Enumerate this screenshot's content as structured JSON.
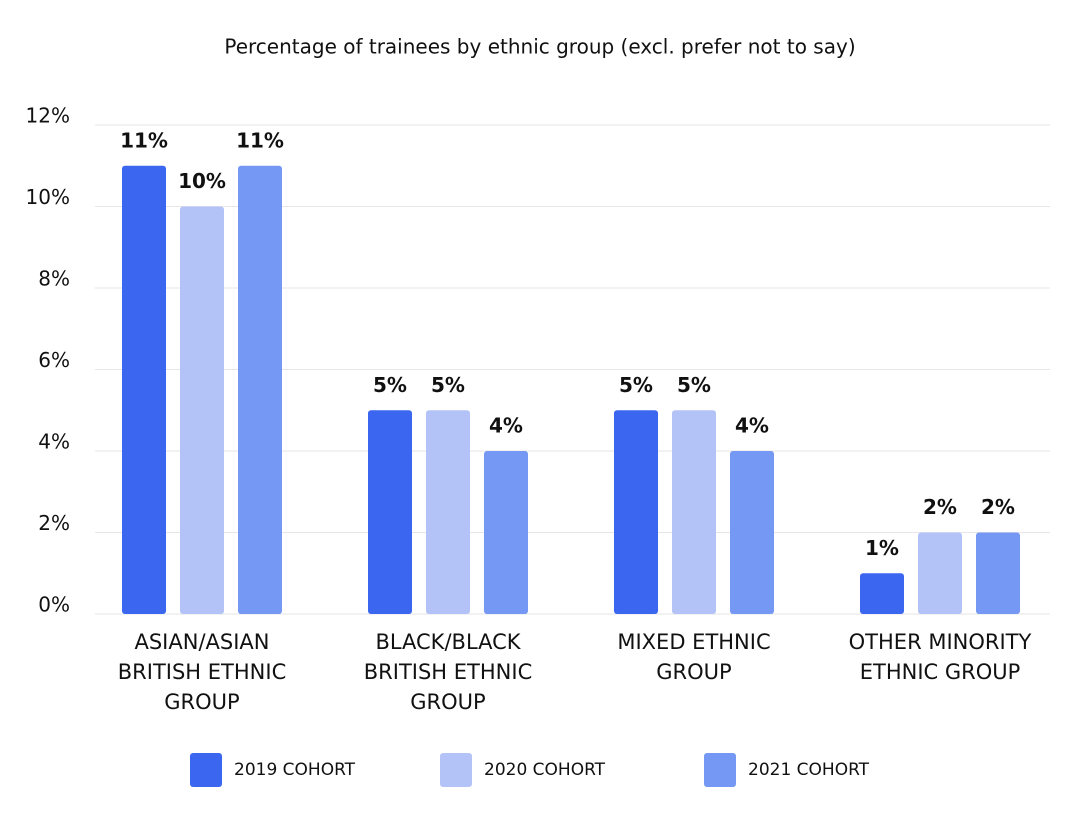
{
  "chart_data": {
    "type": "bar",
    "title": "Percentage of trainees by ethnic group (excl. prefer not to say)",
    "categories": [
      "ASIAN/ASIAN BRITISH ETHNIC GROUP",
      "BLACK/BLACK BRITISH ETHNIC GROUP",
      "MIXED ETHNIC GROUP",
      "OTHER MINORITY ETHNIC GROUP"
    ],
    "series": [
      {
        "name": "2019 COHORT",
        "color": "#3b66f0",
        "values": [
          11,
          5,
          5,
          1
        ],
        "value_labels": [
          "11%",
          "5%",
          "5%",
          "1%"
        ]
      },
      {
        "name": "2020 COHORT",
        "color": "#b3c3f8",
        "values": [
          10,
          5,
          5,
          2
        ],
        "value_labels": [
          "10%",
          "5%",
          "5%",
          "2%"
        ]
      },
      {
        "name": "2021 COHORT",
        "color": "#7598f5",
        "values": [
          11,
          4,
          4,
          2
        ],
        "value_labels": [
          "11%",
          "4%",
          "4%",
          "2%"
        ]
      }
    ],
    "ylim": [
      0,
      12
    ],
    "yticks": [
      {
        "value": 0,
        "label": "0%"
      },
      {
        "value": 2,
        "label": "2%"
      },
      {
        "value": 4,
        "label": "4%"
      },
      {
        "value": 6,
        "label": "6%"
      },
      {
        "value": 8,
        "label": "8%"
      },
      {
        "value": 10,
        "label": "10%"
      },
      {
        "value": 12,
        "label": "12%"
      }
    ],
    "grid": true,
    "legend": "bottom"
  }
}
